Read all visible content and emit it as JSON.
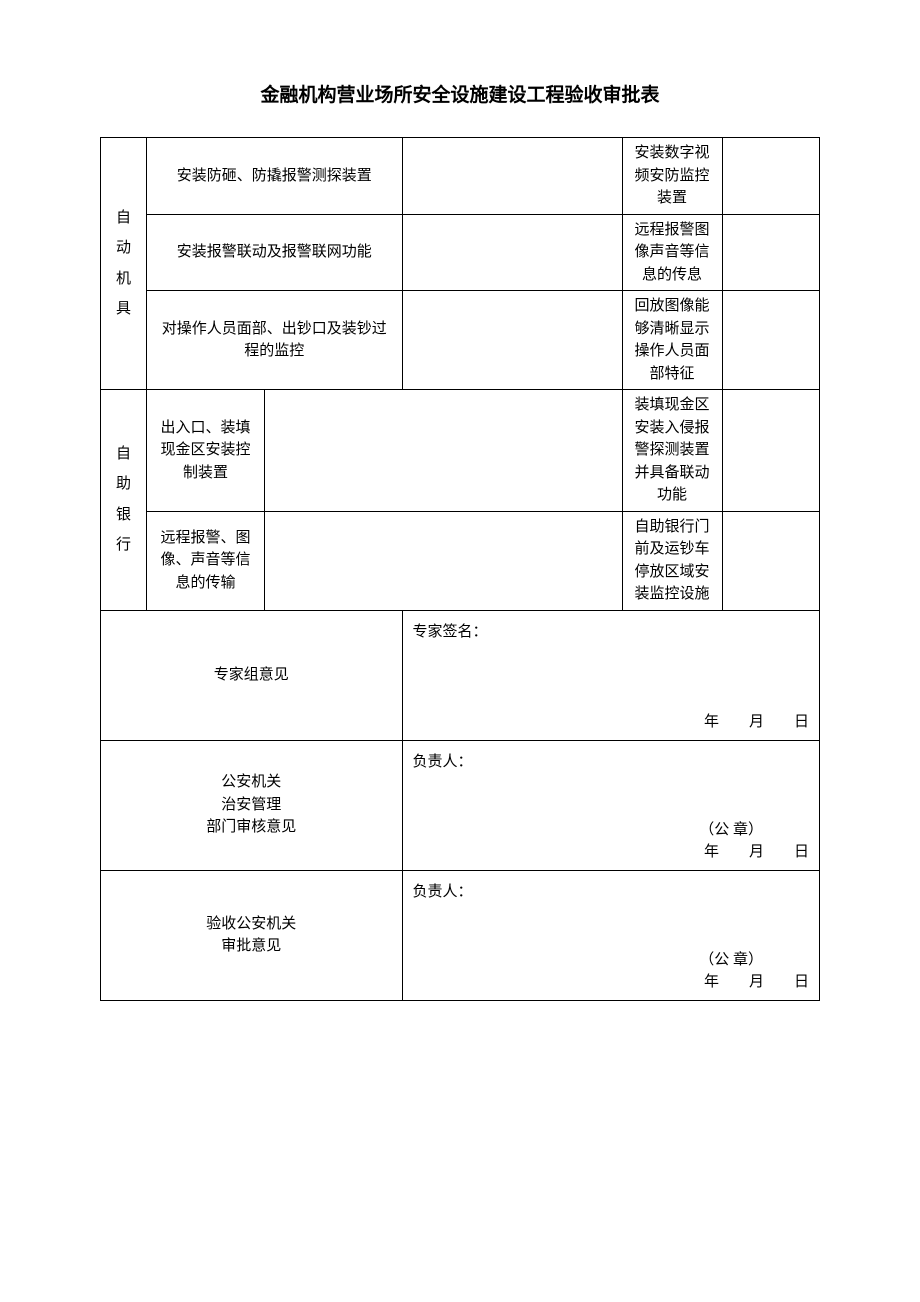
{
  "title": "金融机构营业场所安全设施建设工程验收审批表",
  "section1": {
    "header": "自动机具",
    "rows": [
      {
        "left": "安装防砸、防撬报警测探装置",
        "right": "安装数字视频安防监控装置"
      },
      {
        "left": "安装报警联动及报警联网功能",
        "right": "远程报警图像声音等信息的传息"
      },
      {
        "left": "对操作人员面部、出钞口及装钞过程的监控",
        "right": "回放图像能够清晰显示操作人员面部特征"
      }
    ]
  },
  "section2": {
    "header": "自助银行",
    "rows": [
      {
        "left": "出入口、装填现金区安装控制装置",
        "right": "装填现金区安装入侵报警探测装置并具备联动功能"
      },
      {
        "left": "远程报警、图像、声音等信息的传输",
        "right": "自助银行门前及运钞车停放区域安装监控设施"
      }
    ]
  },
  "opinions": [
    {
      "label": "专家组意见",
      "sign": "专家签名：",
      "seal": "",
      "date": "年　　月　　日"
    },
    {
      "label": "公安机关\n治安管理\n部门审核意见",
      "sign": "负责人：",
      "seal": "（公 章）",
      "date": "年　　月　　日"
    },
    {
      "label": "验收公安机关\n审批意见",
      "sign": "负责人：",
      "seal": "（公 章）",
      "date": "年　　月　　日"
    }
  ],
  "colors": {
    "text": "#000000",
    "background": "#ffffff",
    "border": "#000000"
  }
}
